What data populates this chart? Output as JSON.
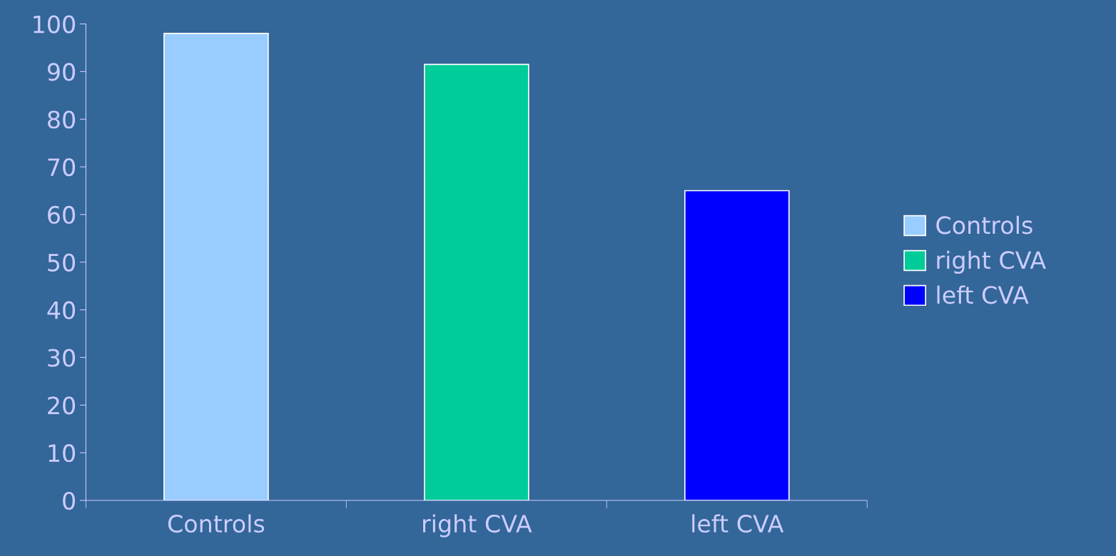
{
  "chart_data": {
    "type": "bar",
    "categories": [
      "Controls",
      "right CVA",
      "left CVA"
    ],
    "series": [
      {
        "name": "Controls",
        "color": "#99ccff",
        "values": [
          98,
          null,
          null
        ]
      },
      {
        "name": "right CVA",
        "color": "#00cc99",
        "values": [
          null,
          91.5,
          null
        ]
      },
      {
        "name": "left CVA",
        "color": "#0000ff",
        "values": [
          null,
          null,
          65
        ]
      }
    ],
    "ylim": [
      0,
      100
    ],
    "yticks": [
      0,
      10,
      20,
      30,
      40,
      50,
      60,
      70,
      80,
      90,
      100
    ],
    "legend": "right"
  }
}
